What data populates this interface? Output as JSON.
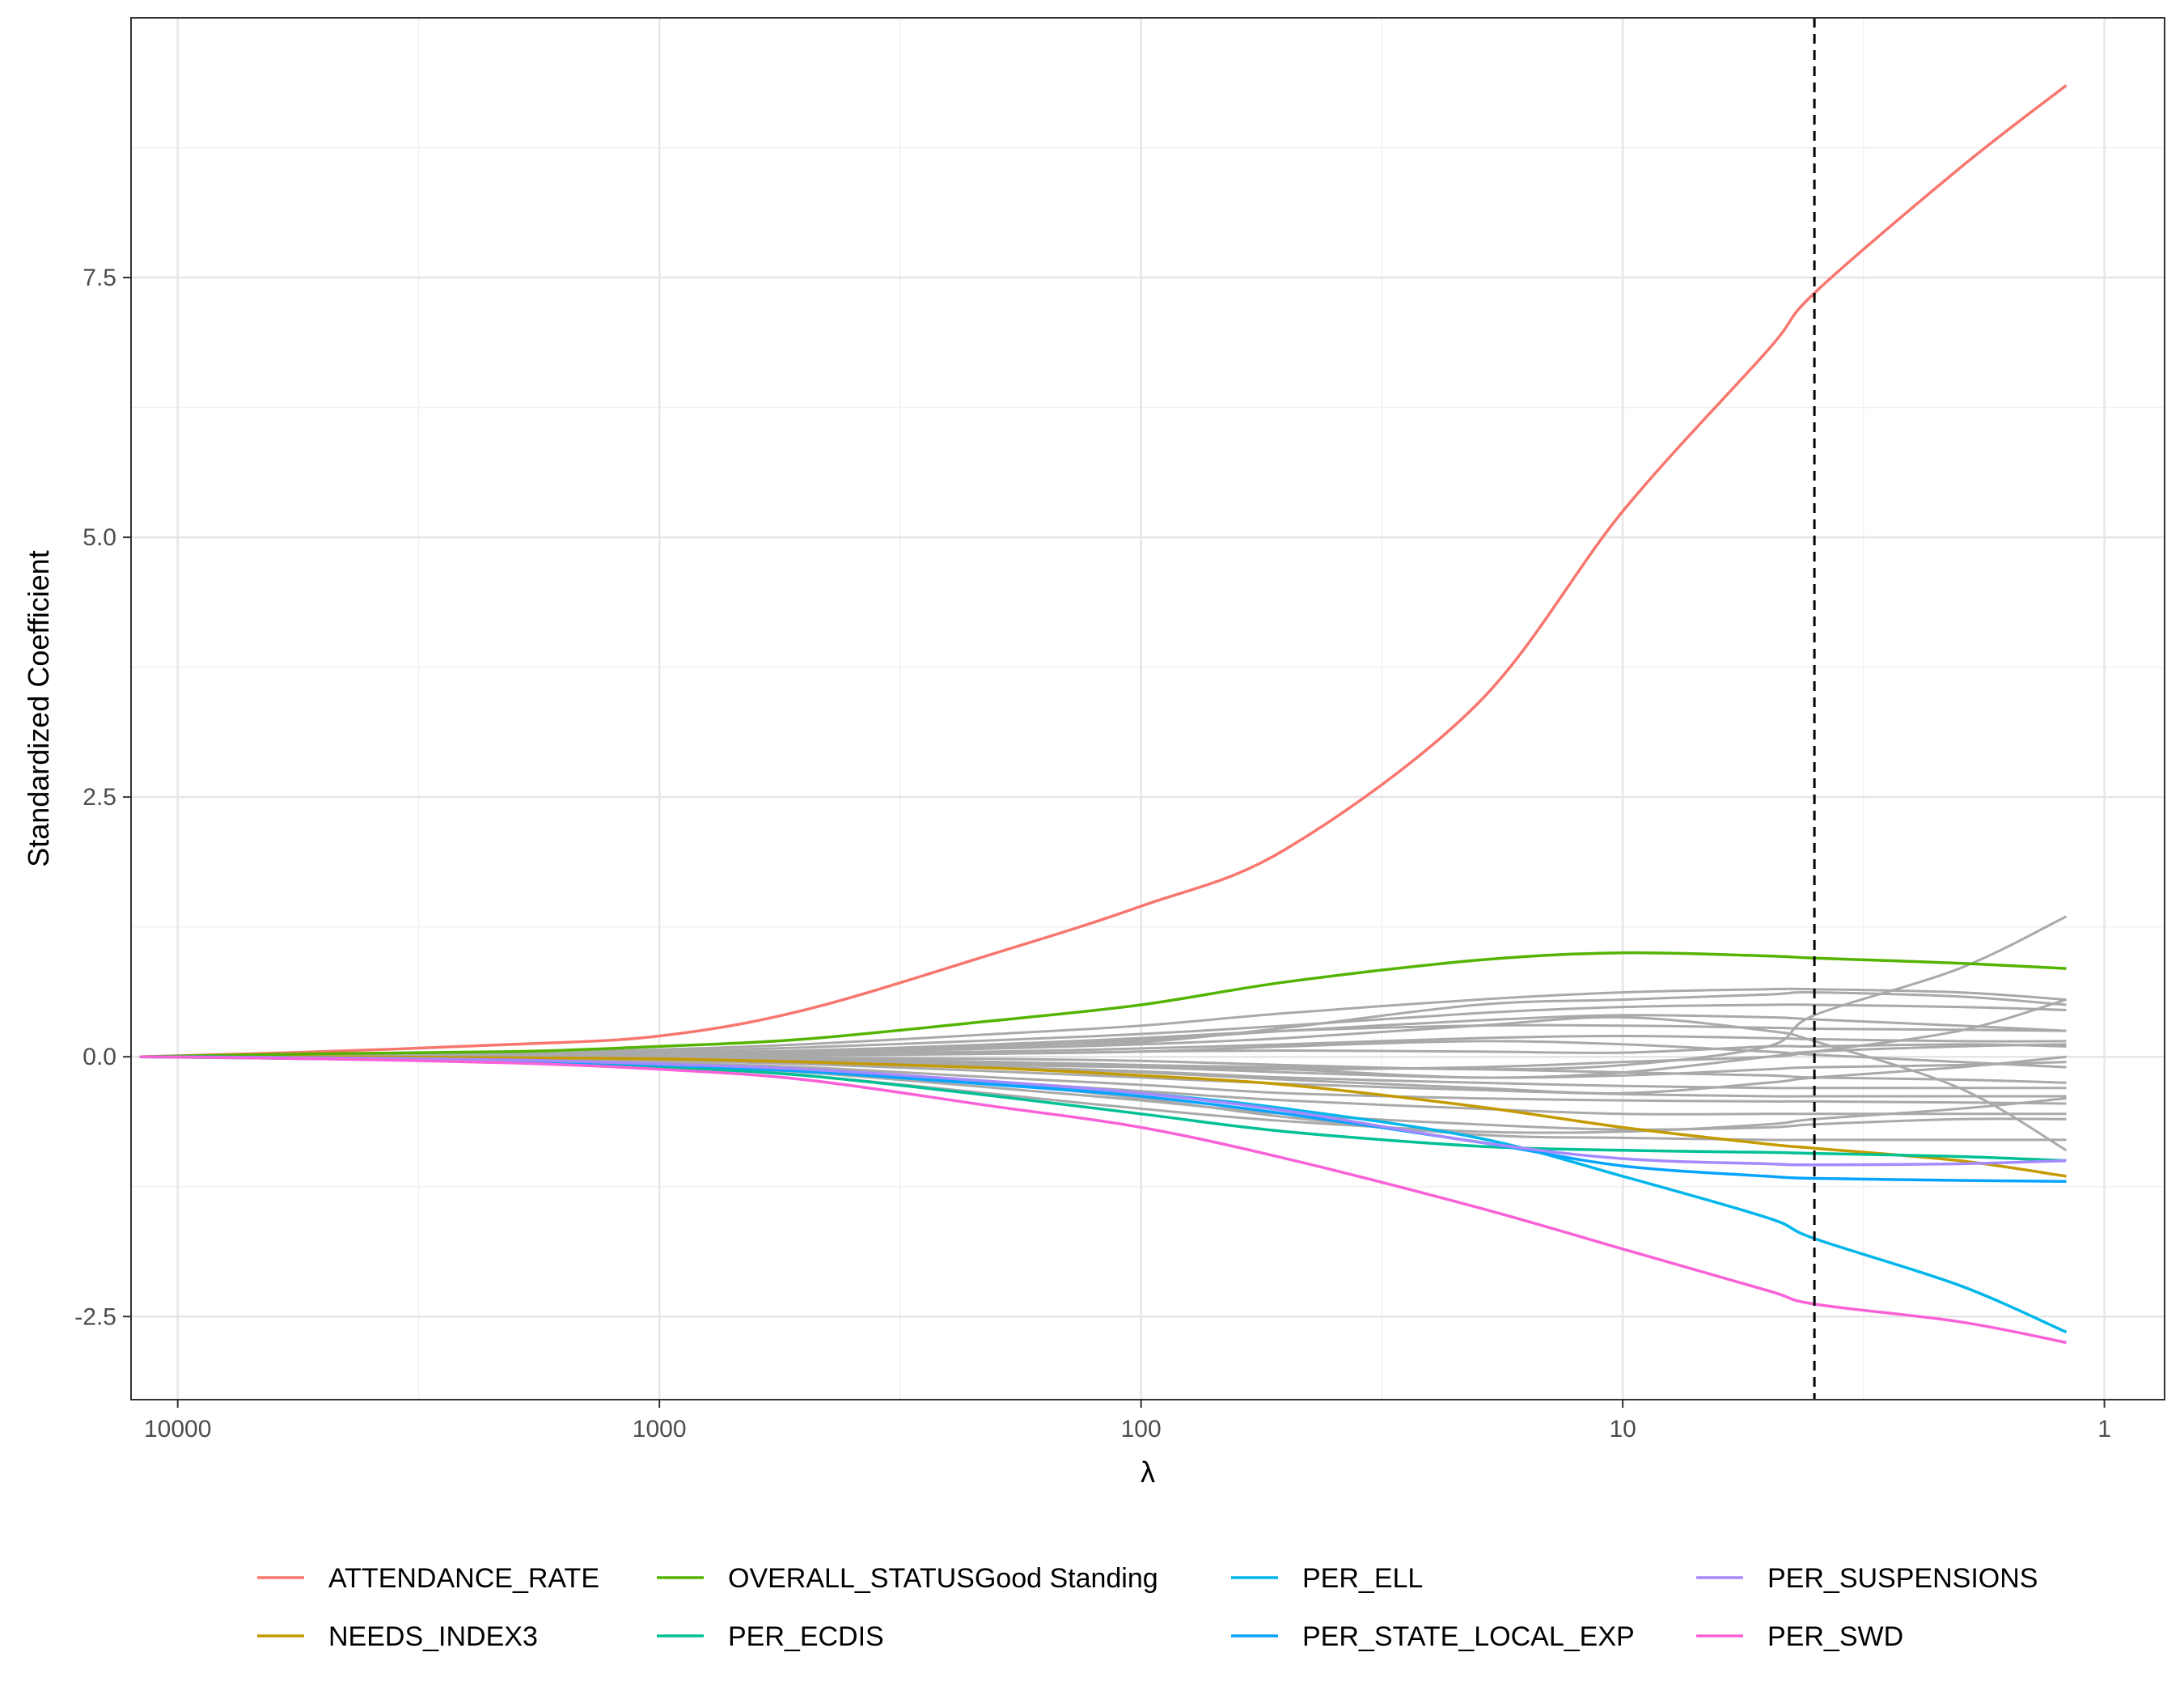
{
  "chart_data": {
    "type": "line",
    "title": "",
    "xlabel": "λ",
    "ylabel": "Standardized Coefficient",
    "x_scale": "log10, reversed",
    "xlim": [
      12500,
      0.75
    ],
    "ylim": [
      -3.3,
      10.0
    ],
    "x_ticks": [
      10000,
      1000,
      100,
      10,
      1
    ],
    "x_tick_labels": [
      "10000",
      "1000",
      "100",
      "10",
      "1"
    ],
    "y_ticks": [
      -2.5,
      0.0,
      2.5,
      5.0,
      7.5
    ],
    "y_tick_labels": [
      "-2.5",
      "0.0",
      "2.5",
      "5.0",
      "7.5"
    ],
    "grid": true,
    "selected_lambda": 4.0,
    "legend_position": "bottom",
    "x": [
      12000,
      5000,
      2000,
      1000,
      500,
      200,
      100,
      50,
      20,
      10,
      5,
      4,
      2,
      1.2
    ],
    "series": [
      {
        "name": "ATTENDANCE_RATE",
        "color": "#F8766D",
        "values": [
          0,
          0.05,
          0.12,
          0.2,
          0.45,
          1.0,
          1.45,
          2.0,
          3.4,
          5.25,
          6.8,
          7.35,
          8.55,
          9.35
        ]
      },
      {
        "name": "NEEDS_INDEX3",
        "color": "#C49A00",
        "values": [
          0,
          0,
          -0.01,
          -0.02,
          -0.05,
          -0.11,
          -0.18,
          -0.27,
          -0.48,
          -0.68,
          -0.84,
          -0.88,
          -1.0,
          -1.15
        ]
      },
      {
        "name": "OVERALL_STATUSGood Standing",
        "color": "#53B400",
        "values": [
          0,
          0.03,
          0.05,
          0.1,
          0.17,
          0.35,
          0.5,
          0.72,
          0.93,
          1.0,
          0.97,
          0.95,
          0.9,
          0.85
        ]
      },
      {
        "name": "PER_ECDIS",
        "color": "#00C094",
        "values": [
          0,
          -0.02,
          -0.05,
          -0.1,
          -0.18,
          -0.38,
          -0.55,
          -0.72,
          -0.86,
          -0.9,
          -0.92,
          -0.93,
          -0.96,
          -1.0
        ]
      },
      {
        "name": "PER_ELL",
        "color": "#00B6EB",
        "values": [
          0,
          -0.01,
          -0.04,
          -0.08,
          -0.14,
          -0.25,
          -0.35,
          -0.5,
          -0.78,
          -1.15,
          -1.55,
          -1.75,
          -2.2,
          -2.65
        ]
      },
      {
        "name": "PER_STATE_LOCAL_EXP",
        "color": "#06A4FF",
        "values": [
          0,
          -0.01,
          -0.04,
          -0.08,
          -0.14,
          -0.27,
          -0.38,
          -0.55,
          -0.82,
          -1.05,
          -1.15,
          -1.17,
          -1.19,
          -1.2
        ]
      },
      {
        "name": "PER_SUSPENSIONS",
        "color": "#A58AFF",
        "values": [
          0,
          -0.01,
          -0.03,
          -0.07,
          -0.12,
          -0.24,
          -0.35,
          -0.52,
          -0.82,
          -0.98,
          -1.03,
          -1.04,
          -1.03,
          -1.0
        ]
      },
      {
        "name": "PER_SWD",
        "color": "#FB61D7",
        "values": [
          0,
          -0.02,
          -0.06,
          -0.12,
          -0.22,
          -0.48,
          -0.68,
          -0.98,
          -1.45,
          -1.85,
          -2.25,
          -2.38,
          -2.55,
          -2.75
        ]
      }
    ],
    "other_series_color": "#a9a9a9",
    "other_series": [
      {
        "values": [
          0,
          0.02,
          0.04,
          0.07,
          0.12,
          0.22,
          0.3,
          0.42,
          0.55,
          0.62,
          0.65,
          0.65,
          0.62,
          0.55
        ]
      },
      {
        "values": [
          0,
          0.01,
          0.03,
          0.05,
          0.09,
          0.16,
          0.22,
          0.3,
          0.42,
          0.48,
          0.5,
          0.5,
          0.48,
          0.45
        ]
      },
      {
        "values": [
          0,
          0.01,
          0.02,
          0.03,
          0.04,
          0.08,
          0.14,
          0.28,
          0.5,
          0.55,
          0.6,
          0.62,
          0.58,
          0.5
        ]
      },
      {
        "values": [
          0,
          0,
          0.01,
          0.02,
          0.05,
          0.1,
          0.16,
          0.25,
          0.35,
          0.4,
          0.38,
          0.36,
          0.3,
          0.25
        ]
      },
      {
        "values": [
          0,
          0.01,
          0.02,
          0.04,
          0.06,
          0.12,
          0.18,
          0.25,
          0.3,
          0.3,
          0.28,
          0.27,
          0.26,
          0.25
        ]
      },
      {
        "values": [
          0,
          0,
          0.01,
          0.02,
          0.03,
          0.05,
          0.08,
          0.12,
          0.18,
          0.2,
          0.18,
          0.17,
          0.15,
          0.15
        ]
      },
      {
        "values": [
          0,
          0,
          0,
          0.01,
          0.02,
          0.03,
          0.05,
          0.06,
          0.05,
          0.04,
          0.1,
          0.1,
          0.12,
          0.1
        ]
      },
      {
        "values": [
          0,
          0,
          0,
          0,
          -0.01,
          -0.02,
          -0.04,
          -0.08,
          -0.12,
          -0.08,
          0.1,
          0.4,
          0.85,
          1.35
        ]
      },
      {
        "values": [
          0,
          0,
          -0.01,
          -0.02,
          -0.04,
          -0.08,
          -0.1,
          -0.12,
          -0.1,
          -0.05,
          0.0,
          0.05,
          0.25,
          0.55
        ]
      },
      {
        "values": [
          0,
          0,
          -0.01,
          -0.01,
          -0.02,
          -0.05,
          -0.08,
          -0.1,
          -0.12,
          -0.15,
          -0.18,
          -0.2,
          -0.22,
          -0.25
        ]
      },
      {
        "values": [
          0,
          -0.01,
          -0.02,
          -0.03,
          -0.05,
          -0.1,
          -0.14,
          -0.2,
          -0.25,
          -0.28,
          -0.3,
          -0.3,
          -0.3,
          -0.3
        ]
      },
      {
        "values": [
          0,
          -0.01,
          -0.02,
          -0.04,
          -0.07,
          -0.14,
          -0.2,
          -0.26,
          -0.32,
          -0.36,
          -0.38,
          -0.38,
          -0.38,
          -0.38
        ]
      },
      {
        "values": [
          0,
          -0.01,
          -0.03,
          -0.06,
          -0.1,
          -0.2,
          -0.27,
          -0.35,
          -0.4,
          -0.42,
          -0.43,
          -0.43,
          -0.44,
          -0.45
        ]
      },
      {
        "values": [
          0,
          -0.01,
          -0.03,
          -0.06,
          -0.12,
          -0.24,
          -0.33,
          -0.42,
          -0.5,
          -0.55,
          -0.55,
          -0.55,
          -0.55,
          -0.55
        ]
      },
      {
        "values": [
          0,
          -0.02,
          -0.04,
          -0.08,
          -0.15,
          -0.3,
          -0.42,
          -0.55,
          -0.65,
          -0.7,
          -0.68,
          -0.65,
          -0.6,
          -0.6
        ]
      },
      {
        "values": [
          0,
          -0.02,
          -0.05,
          -0.1,
          -0.18,
          -0.36,
          -0.5,
          -0.62,
          -0.72,
          -0.72,
          -0.65,
          -0.6,
          -0.5,
          -0.4
        ]
      },
      {
        "values": [
          0,
          -0.01,
          -0.03,
          -0.06,
          -0.12,
          -0.26,
          -0.4,
          -0.58,
          -0.75,
          -0.78,
          -0.8,
          -0.8,
          -0.8,
          -0.8
        ]
      },
      {
        "values": [
          0,
          0,
          0.01,
          0.02,
          0.04,
          0.08,
          0.12,
          0.18,
          0.3,
          0.38,
          0.25,
          0.15,
          -0.3,
          -0.9
        ]
      },
      {
        "values": [
          0,
          0,
          0,
          -0.01,
          -0.02,
          -0.05,
          -0.08,
          -0.12,
          -0.2,
          -0.15,
          0.0,
          0.05,
          0.1,
          0.12
        ]
      },
      {
        "values": [
          0,
          0,
          0,
          0,
          0.01,
          0.03,
          0.05,
          0.1,
          0.15,
          0.12,
          0.05,
          0.02,
          -0.05,
          -0.1
        ]
      },
      {
        "values": [
          0,
          0,
          -0.01,
          -0.02,
          -0.03,
          -0.06,
          -0.1,
          -0.15,
          -0.2,
          -0.18,
          -0.12,
          -0.1,
          -0.08,
          -0.05
        ]
      },
      {
        "values": [
          0,
          -0.01,
          -0.02,
          -0.03,
          -0.05,
          -0.1,
          -0.15,
          -0.22,
          -0.3,
          -0.35,
          -0.25,
          -0.2,
          -0.1,
          0.0
        ]
      }
    ]
  }
}
